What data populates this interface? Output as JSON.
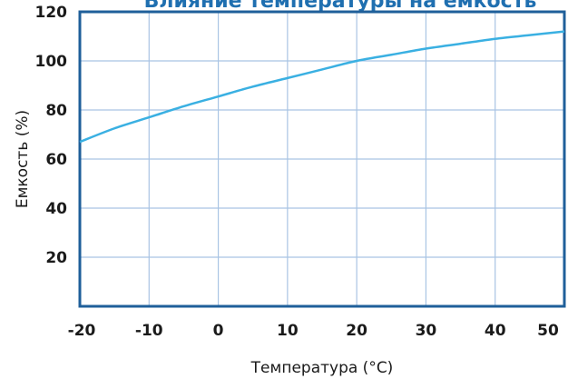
{
  "chart_data": {
    "type": "line",
    "title": "Влияние температуры на емкость",
    "xlabel": "Температура (°C)",
    "ylabel": "Емкость (%)",
    "xlim": [
      -20,
      50
    ],
    "ylim": [
      0,
      120
    ],
    "x_ticks": [
      -20,
      -10,
      0,
      10,
      20,
      30,
      40,
      50
    ],
    "y_ticks": [
      20,
      40,
      60,
      80,
      100,
      120
    ],
    "grid": true,
    "colors": {
      "line": "#3ab0e2",
      "frame": "#1f5f9a",
      "grid": "#a9c4e4",
      "title": "#1f6fb0"
    },
    "series": [
      {
        "x": [
          -20,
          -15,
          -10,
          -5,
          0,
          5,
          10,
          15,
          20,
          25,
          30,
          35,
          40,
          45,
          50
        ],
        "values": [
          67,
          72.5,
          77,
          81.5,
          85.5,
          89.5,
          93,
          96.5,
          100,
          102.5,
          105,
          107,
          109,
          110.5,
          112
        ]
      }
    ]
  }
}
